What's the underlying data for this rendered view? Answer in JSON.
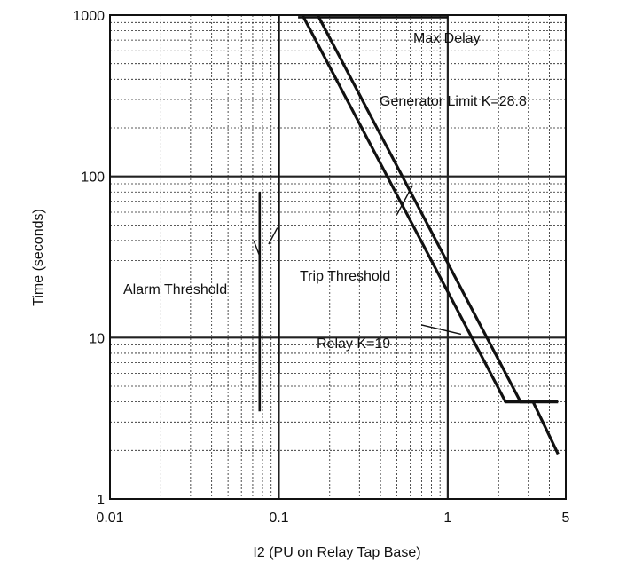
{
  "chart_data": {
    "type": "line",
    "xlabel": "I2 (PU on Relay Tap Base)",
    "ylabel": "Time (seconds)",
    "xscale": "log",
    "yscale": "log",
    "xlim": [
      0.01,
      5
    ],
    "ylim": [
      1,
      1000
    ],
    "grid": true,
    "x_ticks": [
      {
        "value": 0.01,
        "label": "0.01"
      },
      {
        "value": 0.1,
        "label": "0.1"
      },
      {
        "value": 1,
        "label": "1"
      },
      {
        "value": 5,
        "label": "5"
      }
    ],
    "y_ticks": [
      {
        "value": 1,
        "label": "1"
      },
      {
        "value": 10,
        "label": "10"
      },
      {
        "value": 100,
        "label": "100"
      },
      {
        "value": 1000,
        "label": "1000"
      }
    ],
    "series": [
      {
        "key": "generator_limit",
        "label": "Generator Limit K=28.8",
        "points": [
          [
            0.17,
            1000
          ],
          [
            2.7,
            4
          ],
          [
            3.2,
            4
          ],
          [
            4.5,
            1.9
          ]
        ]
      },
      {
        "key": "relay",
        "label": "Relay K=19",
        "points": [
          [
            0.138,
            1000
          ],
          [
            2.2,
            4
          ],
          [
            4.5,
            4
          ]
        ]
      },
      {
        "key": "max_delay",
        "label": "Max Delay",
        "points": [
          [
            0.13,
            970
          ],
          [
            1,
            970
          ]
        ]
      },
      {
        "key": "trip_threshold",
        "label": "Trip Threshold",
        "points": [
          [
            0.1,
            1000
          ],
          [
            0.1,
            6
          ]
        ]
      },
      {
        "key": "alarm_threshold",
        "label": "Alarm Threshold",
        "points": [
          [
            0.077,
            80
          ],
          [
            0.077,
            3.5
          ]
        ]
      }
    ]
  }
}
